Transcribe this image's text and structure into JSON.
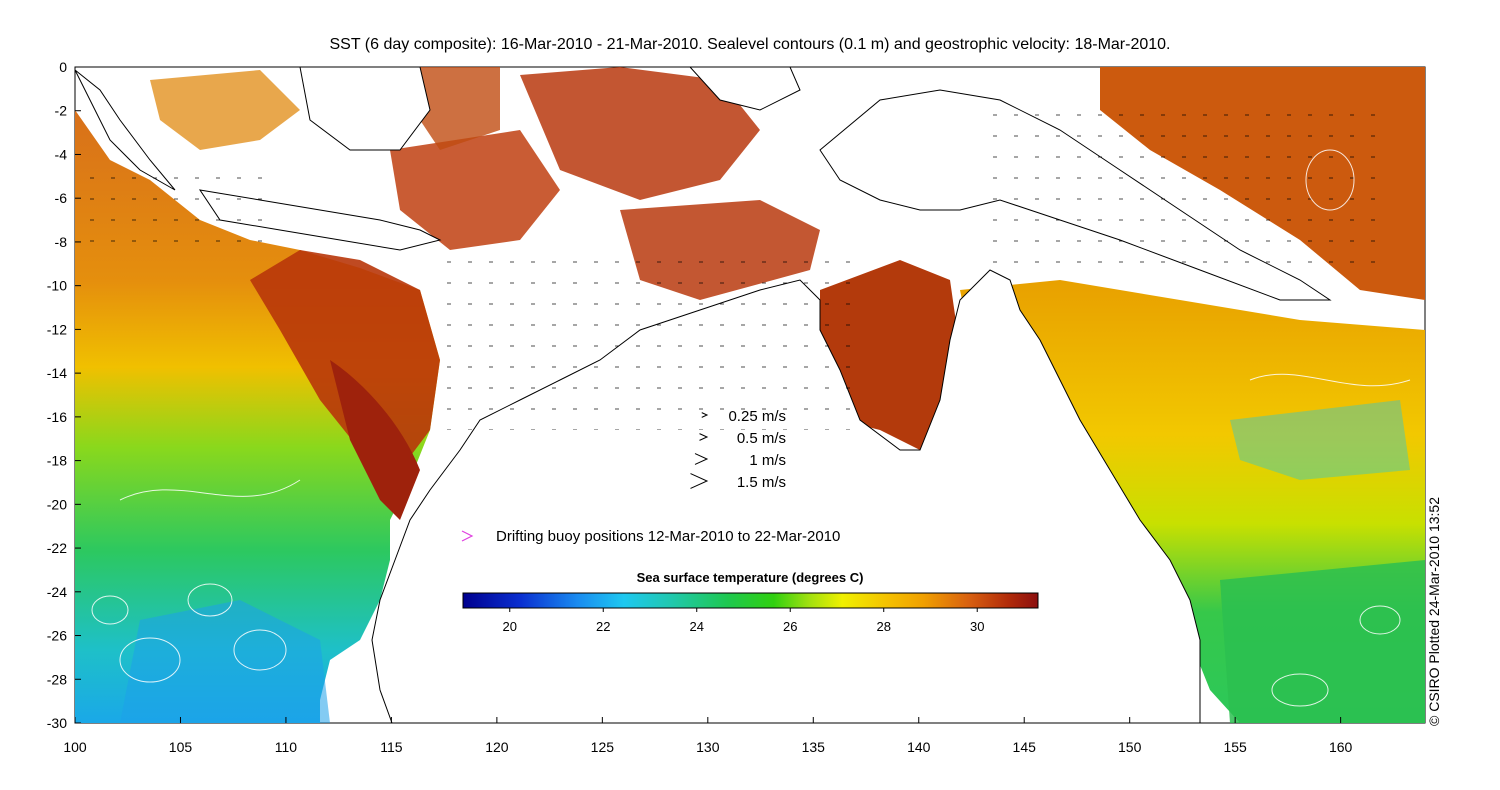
{
  "title": "SST (6 day composite): 16-Mar-2010 - 21-Mar-2010. Sealevel contours (0.1 m) and geostrophic velocity: 18-Mar-2010.",
  "credit": "© CSIRO Plotted 24-Mar-2010 13:52",
  "axes": {
    "x_ticks": [
      "100",
      "105",
      "110",
      "115",
      "120",
      "125",
      "130",
      "135",
      "140",
      "145",
      "150",
      "155",
      "160"
    ],
    "y_ticks": [
      "0",
      "-2",
      "-4",
      "-6",
      "-8",
      "-10",
      "-12",
      "-14",
      "-16",
      "-18",
      "-20",
      "-22",
      "-24",
      "-26",
      "-28",
      "-30"
    ],
    "lon_range": [
      100,
      164
    ],
    "lat_range": [
      -30,
      0
    ]
  },
  "velocity_legend": {
    "items": [
      {
        "label": "0.25 m/s",
        "speed": 0.25
      },
      {
        "label": "0.5 m/s",
        "speed": 0.5
      },
      {
        "label": "1 m/s",
        "speed": 1
      },
      {
        "label": "1.5 m/s",
        "speed": 1.5
      }
    ]
  },
  "buoy_legend": {
    "label": "Drifting buoy positions 12-Mar-2010 to 22-Mar-2010",
    "color": "#e040e0"
  },
  "colorbar": {
    "title": "Sea surface temperature (degrees C)",
    "ticks": [
      "20",
      "22",
      "24",
      "26",
      "28",
      "30"
    ],
    "range": [
      19,
      31.3
    ]
  },
  "colors": {
    "land": "#ffffff",
    "coast": "#000000",
    "contour": "#ffffff"
  }
}
